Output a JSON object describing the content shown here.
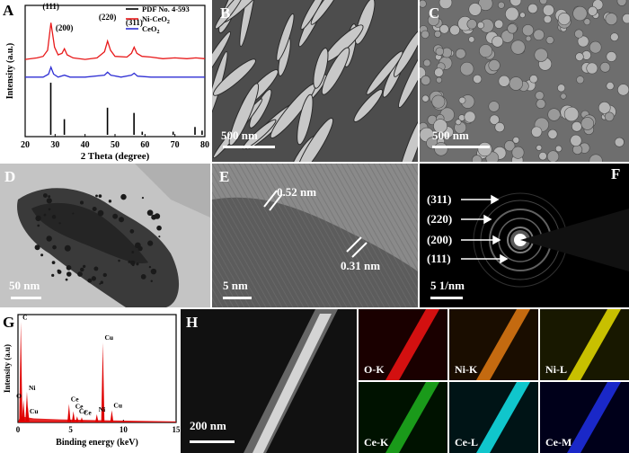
{
  "panels": {
    "A": {
      "label": "A"
    },
    "B": {
      "label": "B",
      "scale": "500 nm"
    },
    "C": {
      "label": "C",
      "scale": "500 nm"
    },
    "D": {
      "label": "D",
      "scale": "50 nm"
    },
    "E": {
      "label": "E",
      "scale": "5 nm",
      "fringe1": "0.52 nm",
      "fringe2": "0.31 nm"
    },
    "F": {
      "label": "F",
      "scale": "5 1/nm",
      "rings": [
        "(311)",
        "(220)",
        "(200)",
        "(111)"
      ]
    },
    "G": {
      "label": "G"
    },
    "H": {
      "label": "H",
      "scale": "200 nm",
      "maps": [
        "O-K",
        "Ni-K",
        "Ni-L",
        "Ce-K",
        "Ce-L",
        "Ce-M"
      ]
    }
  },
  "colors": {
    "ni_ceo2": "#e8191a",
    "ceo2": "#2f2fd4",
    "pdf": "#000000",
    "eds": "#e00000"
  },
  "chart_data": [
    {
      "type": "line",
      "xlabel": "2 Theta (degree)",
      "ylabel": "Intensity (a.u.)",
      "xlim": [
        20,
        80
      ],
      "xticks": [
        "20",
        "30",
        "40",
        "50",
        "60",
        "70",
        "80"
      ],
      "legend": "top-right",
      "peak_labels": [
        {
          "x": 28.6,
          "text": "(111)"
        },
        {
          "x": 33.1,
          "text": "(200)"
        },
        {
          "x": 47.5,
          "text": "(220)"
        },
        {
          "x": 56.4,
          "text": "(311)"
        }
      ],
      "series": [
        {
          "name": "PDF No. 4-593",
          "kind": "stick",
          "x": [
            28.55,
            33.08,
            47.48,
            56.34,
            59.09,
            69.41,
            76.7,
            79.07
          ],
          "values": [
            100,
            30,
            52,
            42,
            6,
            6,
            15,
            8
          ]
        },
        {
          "name": "Ni-CeO2",
          "name_sub": "2",
          "name_base": "Ni-CeO",
          "x": [
            20,
            24,
            26,
            27.5,
            28.6,
            29.8,
            31,
            32.3,
            33.1,
            34,
            36,
            40,
            44,
            46.5,
            47.5,
            48.5,
            50,
            54,
            55.5,
            56.4,
            57.3,
            59,
            62,
            66,
            70,
            74,
            77,
            80
          ],
          "values": [
            14,
            16,
            18,
            26,
            62,
            30,
            20,
            22,
            28,
            20,
            16,
            14,
            16,
            24,
            38,
            26,
            18,
            17,
            22,
            30,
            22,
            18,
            17,
            15,
            16,
            15,
            16,
            15
          ]
        },
        {
          "name": "CeO2",
          "name_sub": "2",
          "name_base": "CeO",
          "x": [
            20,
            26,
            27.8,
            28.6,
            29.5,
            31,
            33.1,
            35,
            40,
            46.5,
            47.5,
            48.6,
            52,
            55.5,
            56.4,
            57.5,
            62,
            70,
            80
          ],
          "values": [
            2,
            2,
            5,
            12,
            5,
            2,
            4,
            2,
            2,
            4,
            7,
            4,
            2,
            4,
            6,
            3,
            2,
            2,
            2
          ]
        }
      ]
    },
    {
      "type": "bar",
      "xlabel": "Binding energy (keV)",
      "ylabel": "Intensity (a.u)",
      "xlim": [
        0,
        15
      ],
      "xticks": [
        "0",
        "5",
        "10",
        "15"
      ],
      "peaks": [
        {
          "x": 0.27,
          "value": 98,
          "label": "C"
        },
        {
          "x": 0.52,
          "value": 22,
          "label": "O"
        },
        {
          "x": 0.85,
          "value": 30,
          "label": "Ni"
        },
        {
          "x": 0.93,
          "value": 16,
          "label": "Cu"
        },
        {
          "x": 4.84,
          "value": 18,
          "label": "Ce"
        },
        {
          "x": 5.26,
          "value": 11,
          "label": "Ce"
        },
        {
          "x": 5.61,
          "value": 6,
          "label": "Ce"
        },
        {
          "x": 6.05,
          "value": 5,
          "label": "Ce"
        },
        {
          "x": 8.05,
          "value": 78,
          "label": "Cu"
        },
        {
          "x": 7.48,
          "value": 8,
          "label": "Ni"
        },
        {
          "x": 8.9,
          "value": 12,
          "label": "Cu"
        }
      ]
    }
  ]
}
